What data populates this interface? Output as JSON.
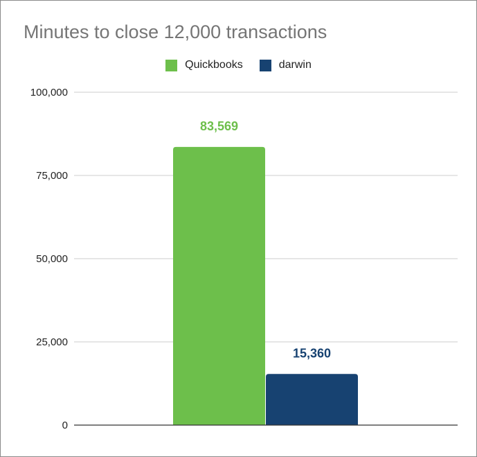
{
  "chart_data": {
    "type": "bar",
    "title": "Minutes to close 12,000 transactions",
    "xlabel": "",
    "ylabel": "",
    "categories": [
      ""
    ],
    "series": [
      {
        "name": "Quickbooks",
        "values": [
          83569
        ],
        "label": "83,569",
        "color": "#6dbf4b"
      },
      {
        "name": "darwin",
        "values": [
          15360
        ],
        "label": "15,360",
        "color": "#174271"
      }
    ],
    "ylim": [
      0,
      100000
    ],
    "yticks": [
      0,
      25000,
      50000,
      75000,
      100000
    ],
    "ytick_labels": [
      "0",
      "25,000",
      "50,000",
      "75,000",
      "100,000"
    ],
    "grid": true,
    "legend_position": "top"
  }
}
